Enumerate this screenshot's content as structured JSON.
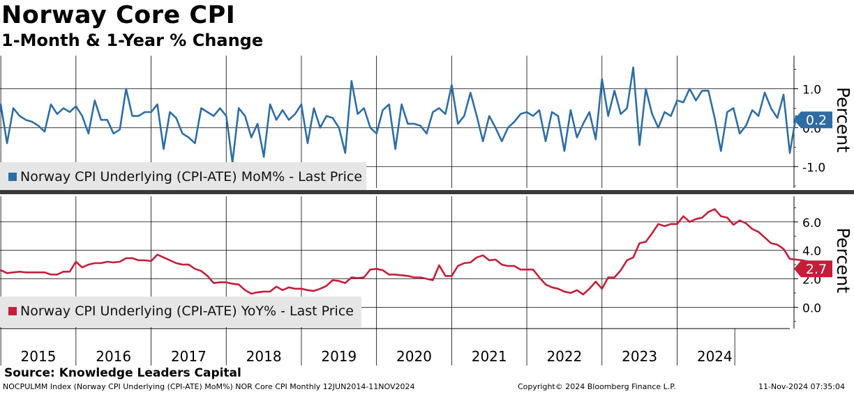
{
  "header": {
    "title": "Norway Core CPI",
    "subtitle": "1-Month & 1-Year % Change"
  },
  "footer": {
    "source": "Source: Knowledge Leaders Capital",
    "ticker_info": "NOCPULMM Index (Norway CPI Underlying (CPI-ATE) MoM%) NOR Core CPI  Monthly 12JUN2014-11NOV2024",
    "copyright": "Copyright© 2024 Bloomberg Finance L.P.",
    "timestamp": "11-Nov-2024 07:35:04"
  },
  "chart_data": [
    {
      "type": "line",
      "name": "mom",
      "legend": "Norway CPI Underlying (CPI-ATE) MoM% - Last Price",
      "ylabel": "Percent",
      "ylim": [
        -1.55,
        1.85
      ],
      "yticks": [
        1.0,
        0.0,
        -1.0
      ],
      "ytick_labels": [
        "1.0",
        "0.0",
        "-1.0"
      ],
      "last_value_label": "0.2",
      "color": "#2e6da4",
      "x_start": "2014-06",
      "values": [
        -0.15,
        0.6,
        -0.4,
        0.5,
        0.3,
        0.2,
        0.15,
        0.05,
        -0.1,
        0.6,
        0.35,
        0.5,
        0.4,
        0.55,
        0.3,
        -0.15,
        0.7,
        0.2,
        0.2,
        -0.15,
        -0.05,
        1.0,
        0.3,
        0.3,
        0.4,
        0.4,
        0.6,
        -0.55,
        0.4,
        0.25,
        -0.15,
        -0.25,
        -0.4,
        0.5,
        0.4,
        0.3,
        0.5,
        0.3,
        -0.9,
        0.5,
        0.3,
        -0.25,
        0.1,
        -0.75,
        0.6,
        0.2,
        0.45,
        0.2,
        0.35,
        0.6,
        -0.4,
        0.5,
        0.0,
        0.3,
        0.25,
        0.0,
        -0.65,
        1.2,
        0.35,
        0.5,
        0.0,
        -0.15,
        0.45,
        0.6,
        -0.55,
        0.6,
        0.1,
        0.1,
        0.05,
        -0.15,
        0.4,
        0.5,
        0.35,
        1.1,
        0.1,
        0.3,
        0.9,
        0.3,
        -0.35,
        0.3,
        0.0,
        -0.35,
        0.0,
        0.15,
        0.35,
        0.4,
        0.3,
        0.45,
        -0.35,
        0.4,
        0.3,
        -0.6,
        0.45,
        -0.25,
        0.1,
        0.4,
        -0.3,
        1.25,
        0.3,
        0.95,
        0.35,
        0.5,
        1.55,
        -0.45,
        1.0,
        0.35,
        0.0,
        0.4,
        0.3,
        0.7,
        0.65,
        1.0,
        0.7,
        0.95,
        0.95,
        0.25,
        -0.6,
        0.4,
        0.5,
        -0.15,
        0.05,
        0.45,
        0.3,
        0.9,
        0.5,
        0.25,
        0.85,
        -0.65,
        0.3,
        0.2
      ]
    },
    {
      "type": "line",
      "name": "yoy",
      "legend": "Norway CPI Underlying (CPI-ATE) YoY% - Last Price",
      "ylabel": "Percent",
      "ylim": [
        -1.5,
        7.8
      ],
      "yticks": [
        6.0,
        4.0,
        2.0,
        0.0
      ],
      "ytick_labels": [
        "6.0",
        "4.0",
        "2.0",
        "0.0"
      ],
      "last_value_label": "2.7",
      "color": "#c41e3a",
      "x_start": "2014-06",
      "values": [
        2.5,
        2.6,
        2.4,
        2.45,
        2.5,
        2.45,
        2.45,
        2.45,
        2.45,
        2.3,
        2.3,
        2.5,
        2.5,
        3.2,
        2.8,
        3.0,
        3.1,
        3.1,
        3.2,
        3.15,
        3.2,
        3.45,
        3.45,
        3.3,
        3.3,
        3.25,
        3.7,
        3.5,
        3.3,
        3.1,
        3.0,
        3.0,
        2.7,
        2.55,
        2.2,
        1.7,
        1.75,
        1.75,
        1.65,
        1.6,
        1.2,
        0.95,
        1.05,
        1.1,
        1.1,
        1.45,
        1.2,
        1.4,
        1.3,
        1.3,
        1.2,
        1.15,
        1.3,
        1.5,
        1.9,
        1.85,
        1.7,
        2.1,
        2.05,
        2.1,
        2.65,
        2.7,
        2.6,
        2.3,
        2.3,
        2.25,
        2.2,
        2.1,
        2.1,
        2.0,
        1.9,
        2.95,
        2.2,
        2.2,
        2.9,
        3.1,
        3.15,
        3.5,
        3.65,
        3.3,
        3.35,
        3.0,
        2.9,
        2.9,
        2.65,
        2.65,
        2.65,
        2.1,
        1.6,
        1.4,
        1.3,
        1.1,
        1.0,
        1.2,
        0.9,
        1.3,
        1.8,
        1.3,
        2.1,
        2.1,
        2.6,
        3.3,
        3.5,
        4.5,
        4.6,
        5.2,
        5.85,
        5.7,
        5.85,
        5.85,
        6.4,
        6.0,
        6.2,
        6.3,
        6.7,
        6.9,
        6.4,
        6.3,
        5.8,
        6.1,
        5.9,
        5.5,
        5.3,
        4.9,
        4.5,
        4.4,
        4.1,
        3.4,
        3.35,
        3.3,
        3.2,
        2.7
      ]
    }
  ],
  "x_axis": {
    "years": [
      "2015",
      "2016",
      "2017",
      "2018",
      "2019",
      "2020",
      "2021",
      "2022",
      "2023",
      "2024"
    ]
  }
}
